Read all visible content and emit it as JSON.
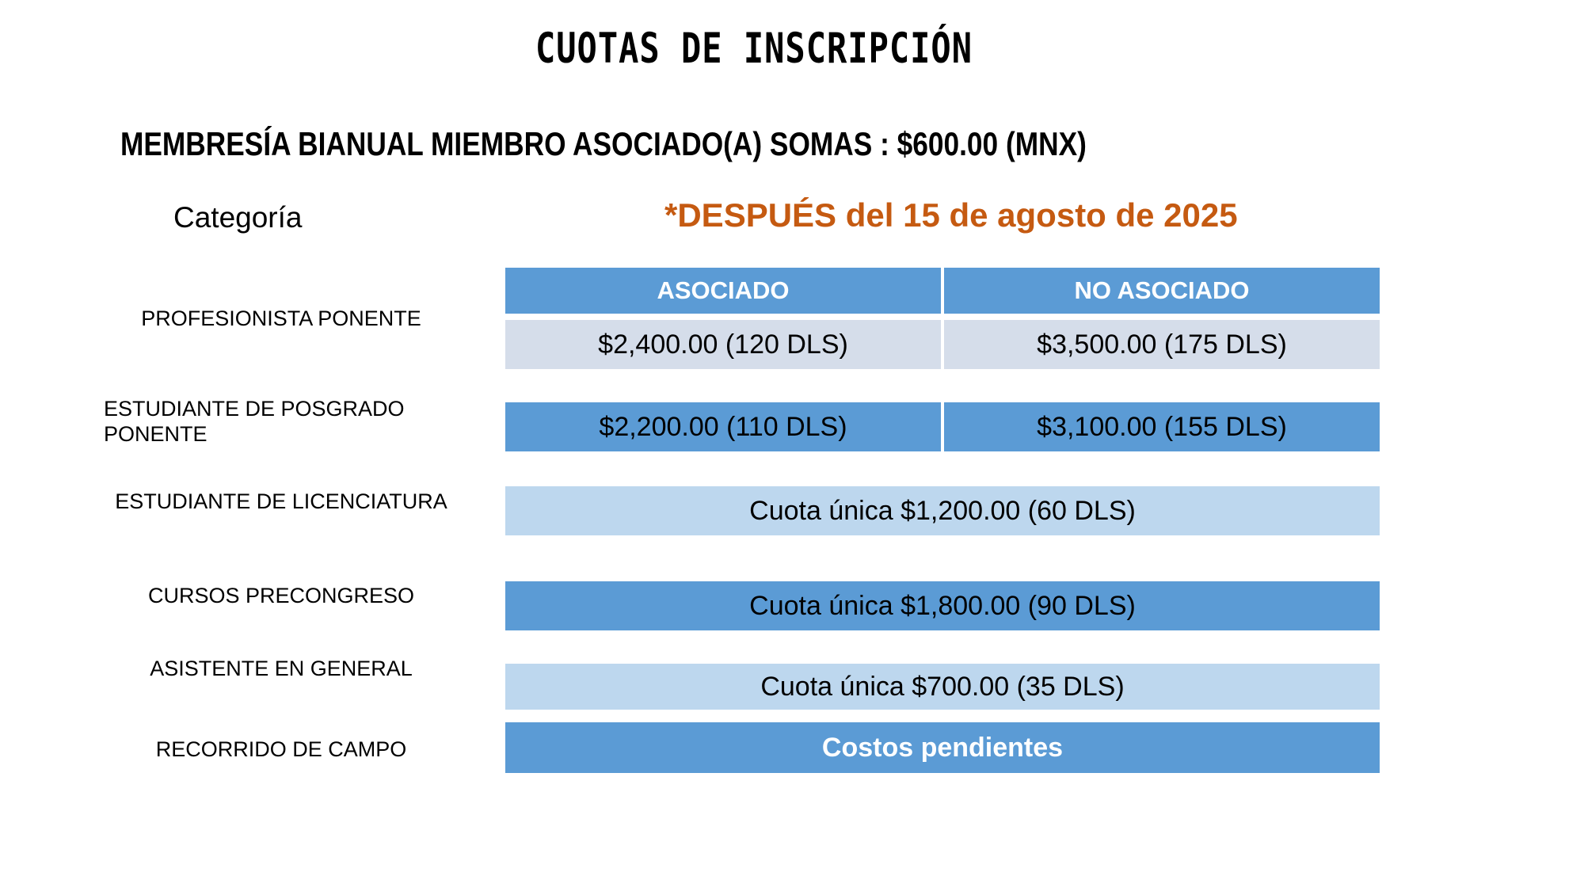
{
  "title": "CUOTAS DE INSCRIPCIÓN",
  "membership_note": "MEMBRESÍA BIANUAL MIEMBRO ASOCIADO(A) SOMAS : $600.00 (MNX)",
  "category_header": "Categoría",
  "deadline_note": "*DESPUÉS del 15 de agosto de 2025",
  "colors": {
    "accent_blue": "#5B9BD5",
    "light_band": "#D5DDEA",
    "light_blue_band": "#BDD7EE",
    "deadline_orange": "#C55A11"
  },
  "table": {
    "column_headers": [
      "ASOCIADO",
      "NO ASOCIADO"
    ],
    "rows": [
      {
        "category": "PROFESIONISTA PONENTE",
        "asociado": "$2,400.00 (120 DLS)",
        "no_asociado": "$3,500.00 (175 DLS)"
      },
      {
        "category": "ESTUDIANTE DE POSGRADO PONENTE",
        "asociado": "$2,200.00 (110 DLS)",
        "no_asociado": "$3,100.00 (155 DLS)"
      },
      {
        "category": "ESTUDIANTE DE LICENCIATURA",
        "fee": "Cuota única $1,200.00 (60 DLS)"
      },
      {
        "category": "CURSOS PRECONGRESO",
        "fee": "Cuota única $1,800.00 (90 DLS)"
      },
      {
        "category": "ASISTENTE EN GENERAL",
        "fee": "Cuota única $700.00 (35 DLS)"
      },
      {
        "category": "RECORRIDO DE CAMPO",
        "fee": "Costos pendientes"
      }
    ]
  }
}
